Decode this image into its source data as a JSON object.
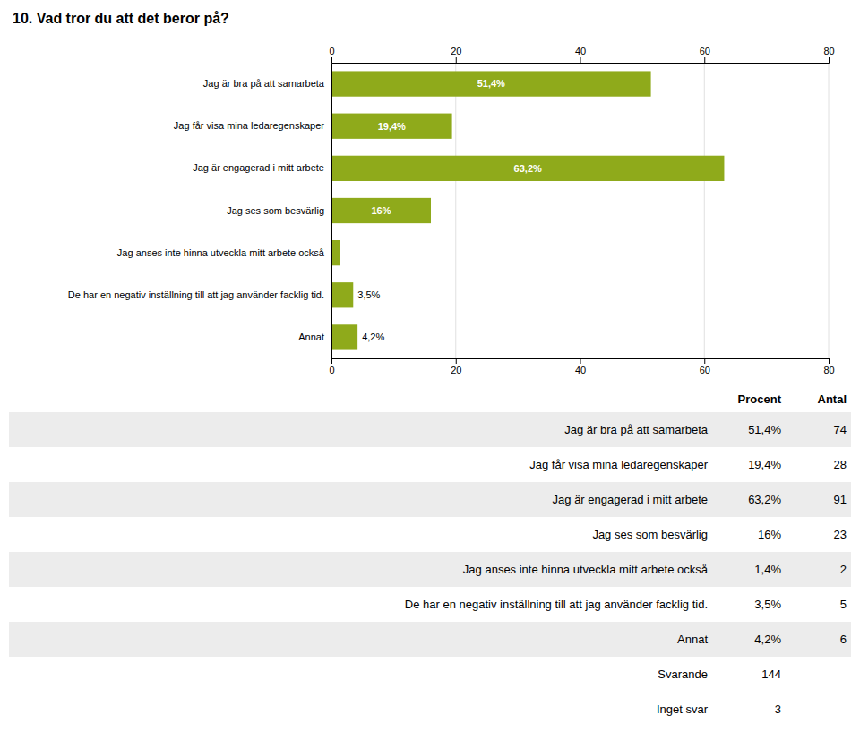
{
  "chart_data": {
    "type": "bar",
    "orientation": "horizontal",
    "title": "10. Vad tror du att det beror på?",
    "categories": [
      "Jag är bra på att samarbeta",
      "Jag får visa mina ledaregenskaper",
      "Jag är engagerad i mitt arbete",
      "Jag ses som besvärlig",
      "Jag anses inte hinna utveckla mitt arbete också",
      "De har en negativ inställning till att jag använder facklig tid.",
      "Annat"
    ],
    "values": [
      51.4,
      19.4,
      63.2,
      16.0,
      1.4,
      3.5,
      4.2
    ],
    "value_labels": [
      "51,4%",
      "19,4%",
      "63,2%",
      "16%",
      null,
      "3,5%",
      "4,2%"
    ],
    "data_labels": true,
    "color": "#8faa1b",
    "xlim": [
      0,
      80
    ],
    "xticks": [
      0,
      20,
      40,
      60,
      80
    ],
    "grid": true,
    "table": {
      "columns": [
        "Procent",
        "Antal"
      ],
      "rows": [
        [
          "Jag är bra på att samarbeta",
          "51,4%",
          "74"
        ],
        [
          "Jag får visa mina ledaregenskaper",
          "19,4%",
          "28"
        ],
        [
          "Jag är engagerad i mitt arbete",
          "63,2%",
          "91"
        ],
        [
          "Jag ses som besvärlig",
          "16%",
          "23"
        ],
        [
          "Jag anses inte hinna utveckla mitt arbete också",
          "1,4%",
          "2"
        ],
        [
          "De har en negativ inställning till att jag använder facklig tid.",
          "3,5%",
          "5"
        ],
        [
          "Annat",
          "4,2%",
          "6"
        ],
        [
          "Svarande",
          "144",
          null
        ],
        [
          "Inget svar",
          "3",
          null
        ]
      ]
    }
  }
}
